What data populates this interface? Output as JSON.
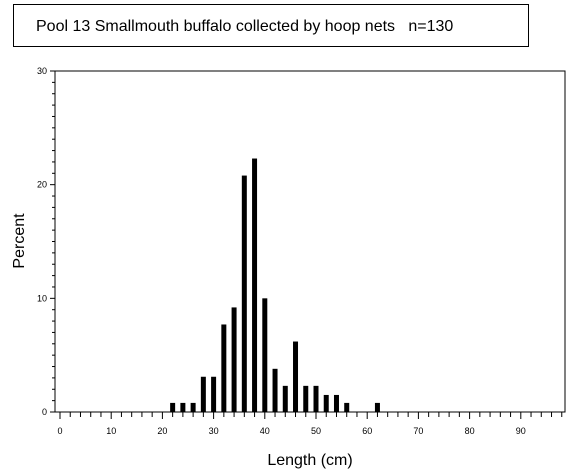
{
  "chart_data": {
    "type": "bar",
    "title": "Pool 13 Smallmouth buffalo collected by hoop nets   n=130",
    "xlabel": "Length (cm)",
    "ylabel": "Percent",
    "xlim": [
      0,
      98
    ],
    "ylim": [
      0,
      30
    ],
    "x_ticks": [
      0,
      10,
      20,
      30,
      40,
      50,
      60,
      70,
      80,
      90
    ],
    "y_ticks": [
      0,
      10,
      20,
      30
    ],
    "grid": false,
    "legend": "none",
    "bar_color": "#000000",
    "x": [
      22,
      24,
      26,
      28,
      30,
      32,
      34,
      36,
      38,
      40,
      42,
      44,
      46,
      48,
      50,
      52,
      54,
      56,
      62
    ],
    "values": [
      0.8,
      0.8,
      0.8,
      3.1,
      3.1,
      7.7,
      9.2,
      20.8,
      22.3,
      10.0,
      3.8,
      2.3,
      6.2,
      2.3,
      2.3,
      1.5,
      1.5,
      0.8,
      0.8
    ]
  }
}
